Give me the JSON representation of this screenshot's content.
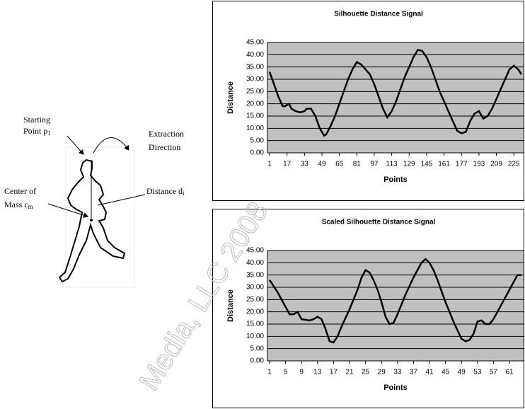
{
  "diagram": {
    "starting_point": {
      "line1": "Starting",
      "line2": "Point p",
      "sub": "1"
    },
    "extraction_direction": {
      "line1": "Extraction",
      "line2": "Direction"
    },
    "center_of_mass": {
      "line1": "Center of",
      "line2": "Mass c",
      "sub": "m"
    },
    "distance": {
      "text": "Distance d",
      "sub": "i"
    }
  },
  "watermark": "Media, LLC 2008",
  "chart_data": [
    {
      "type": "line",
      "title": "Silhouette Distance Signal",
      "x_label": "Points",
      "y_label": "Distance",
      "x": [
        1,
        5,
        9,
        13,
        15,
        17,
        19,
        21,
        25,
        29,
        33,
        35,
        39,
        43,
        47,
        51,
        53,
        57,
        61,
        65,
        69,
        73,
        77,
        81,
        85,
        89,
        93,
        97,
        101,
        105,
        109,
        113,
        117,
        121,
        125,
        129,
        133,
        137,
        141,
        145,
        149,
        153,
        157,
        161,
        165,
        169,
        173,
        177,
        181,
        185,
        189,
        193,
        197,
        201,
        205,
        209,
        213,
        217,
        221,
        225,
        229,
        232
      ],
      "series": [
        {
          "name": "Distance",
          "color": "#000000",
          "values": [
            33,
            28,
            23,
            19,
            19,
            19.5,
            20,
            18,
            17,
            16.5,
            17,
            18,
            18,
            15,
            10,
            7,
            7.5,
            11,
            15,
            20,
            25,
            30,
            34,
            37,
            36,
            34,
            32,
            28,
            23,
            18,
            14.5,
            17,
            21,
            26,
            31,
            35,
            39,
            42,
            41.5,
            39,
            35,
            30,
            25,
            21,
            17,
            13,
            9,
            8,
            8.5,
            13,
            16,
            17,
            14,
            15,
            18,
            22,
            26,
            30,
            34,
            35.5,
            34,
            32
          ]
        }
      ],
      "xlim": [
        1,
        232
      ],
      "xticks": [
        1,
        17,
        33,
        49,
        65,
        81,
        97,
        113,
        129,
        145,
        161,
        177,
        193,
        209,
        225
      ],
      "ylim": [
        0,
        45
      ],
      "yticks": [
        {
          "value": 0,
          "label": "0.00"
        },
        {
          "value": 5,
          "label": "5.00"
        },
        {
          "value": 10,
          "label": "10.00"
        },
        {
          "value": 15,
          "label": "15.00"
        },
        {
          "value": 20,
          "label": "20.00"
        },
        {
          "value": 25,
          "label": "25.00"
        },
        {
          "value": 30,
          "label": "30.00"
        },
        {
          "value": 35,
          "label": "35.00"
        },
        {
          "value": 40,
          "label": "40.00"
        },
        {
          "value": 45,
          "label": "45.00"
        }
      ],
      "grid": true,
      "plot_color": "#c0c0c0"
    },
    {
      "type": "line",
      "title": "Scaled Silhouette Distance Signal",
      "x_label": "Points",
      "y_label": "Distance",
      "x": [
        1,
        3,
        5,
        6,
        7,
        8,
        9,
        11,
        12,
        13,
        14,
        15,
        16,
        17,
        18,
        19,
        21,
        23,
        24,
        25,
        26,
        27,
        28,
        29,
        30,
        31,
        32,
        33,
        35,
        37,
        39,
        40,
        41,
        42,
        43,
        45,
        47,
        49,
        50,
        51,
        52,
        53,
        54,
        55,
        56,
        57,
        59,
        61,
        63,
        64
      ],
      "series": [
        {
          "name": "Distance",
          "color": "#000000",
          "values": [
            33,
            28,
            22,
            19,
            19,
            20,
            17,
            16.5,
            17,
            18,
            17,
            13,
            8,
            7.5,
            10,
            14,
            21,
            29,
            34,
            37,
            36,
            33,
            29,
            24,
            18,
            15,
            15.5,
            19,
            27,
            34,
            40,
            41.5,
            40,
            37,
            33,
            24,
            16,
            9,
            8,
            8.5,
            11,
            16,
            16.5,
            15,
            15,
            17,
            23,
            29,
            35,
            35
          ]
        }
      ],
      "xlim": [
        1,
        64
      ],
      "xticks": [
        1,
        5,
        9,
        13,
        17,
        21,
        25,
        29,
        33,
        37,
        41,
        45,
        49,
        53,
        57,
        61
      ],
      "ylim": [
        0,
        45
      ],
      "yticks": [
        {
          "value": 0,
          "label": "0.00"
        },
        {
          "value": 5,
          "label": "5.00"
        },
        {
          "value": 10,
          "label": "10.00"
        },
        {
          "value": 15,
          "label": "15.00"
        },
        {
          "value": 20,
          "label": "20.00"
        },
        {
          "value": 25,
          "label": "25.00"
        },
        {
          "value": 30,
          "label": "30.00"
        },
        {
          "value": 35,
          "label": "35.00"
        },
        {
          "value": 40,
          "label": "40.00"
        },
        {
          "value": 45,
          "label": "45.00"
        }
      ],
      "grid": true,
      "plot_color": "#c0c0c0"
    }
  ]
}
